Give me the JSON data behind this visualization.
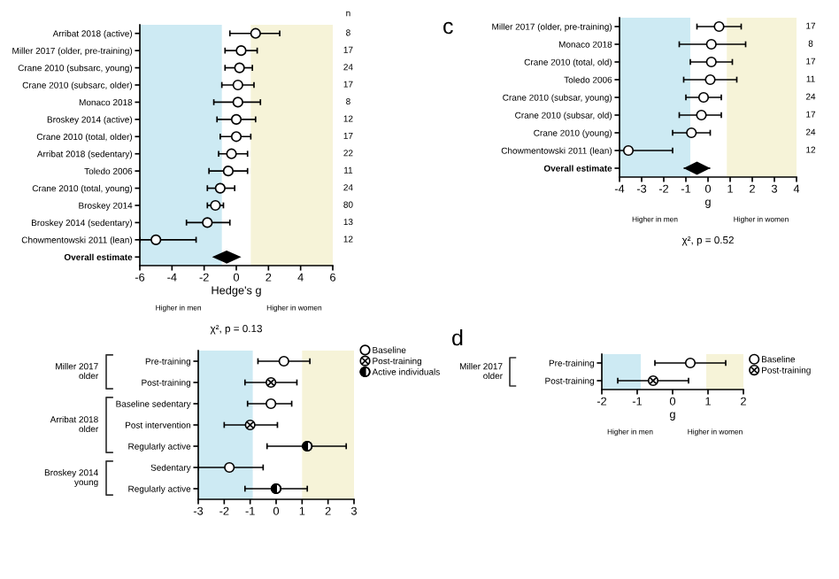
{
  "chart_data": [
    {
      "type": "scatter",
      "orientation": "horizontal",
      "xlabel": "Hedge's g",
      "y2label": "n",
      "categories": [
        "Arribat 2018 (active)",
        "Miller 2017 (older, pre-training)",
        "Crane 2010 (subsarc, young)",
        "Crane 2010 (subsarc, older)",
        "Monaco 2018",
        "Broskey 2014 (active)",
        "Crane 2010 (total, older)",
        "Arribat 2018 (sedentary)",
        "Toledo 2006",
        "Crane 2010 (total, young)",
        "Broskey 2014",
        "Broskey 2014 (sedentary)",
        "Chowmentowski 2011 (lean)",
        "Overall estimate"
      ],
      "y2_categories": [
        "8",
        "17",
        "24",
        "17",
        "8",
        "12",
        "17",
        "22",
        "11",
        "24",
        "80",
        "13",
        "12",
        null
      ],
      "series": [
        {
          "color": "#000000",
          "marker": "circle",
          "values": [
            1.2,
            0.3,
            0.2,
            0.1,
            0.1,
            0.0,
            0.0,
            -0.3,
            -0.5,
            -1.0,
            -1.3,
            -1.8,
            -5.0,
            null
          ],
          "errors": [
            [
              -0.4,
              2.7
            ],
            [
              -0.7,
              1.3
            ],
            [
              -0.7,
              1.0
            ],
            [
              -0.9,
              1.1
            ],
            [
              -1.4,
              1.5
            ],
            [
              -1.2,
              1.2
            ],
            [
              -1.0,
              0.9
            ],
            [
              -1.1,
              0.7
            ],
            [
              -1.7,
              0.7
            ],
            [
              -1.8,
              -0.1
            ],
            [
              -1.8,
              -0.8
            ],
            [
              -3.1,
              -0.4
            ],
            [
              -6.0,
              -2.5
            ],
            null
          ]
        },
        {
          "color": "#000000",
          "marker": "diamond",
          "values": [
            null,
            null,
            null,
            null,
            null,
            null,
            null,
            null,
            null,
            null,
            null,
            null,
            null,
            -0.6
          ],
          "errors": [
            null,
            null,
            null,
            null,
            null,
            null,
            null,
            null,
            null,
            null,
            null,
            null,
            null,
            [
              -1.2,
              0.1
            ]
          ]
        }
      ],
      "xlim": [
        -6,
        6
      ],
      "xticks": [
        -6,
        -4,
        -2,
        0,
        2,
        4,
        6
      ],
      "bands": [
        {
          "axis": "x",
          "from": -6,
          "to": -0.9,
          "color": "#cdeaf3"
        },
        {
          "axis": "x",
          "from": 0.9,
          "to": 6,
          "color": "#f6f3d8"
        }
      ],
      "annotations": [
        "Higher in men",
        "Higher in women",
        "χ², p = 0.13"
      ]
    },
    {
      "type": "scatter",
      "orientation": "horizontal",
      "title": "c",
      "xlabel": "g",
      "categories": [
        "Miller 2017 (older, pre-training)",
        "Monaco 2018",
        "Crane 2010 (total, old)",
        "Toledo 2006",
        "Crane 2010 (subsar, young)",
        "Crane 2010 (subsar, old)",
        "Crane 2010 (young)",
        "Chowmentowski 2011 (lean)",
        "Overall estimate"
      ],
      "y2_categories": [
        "17",
        "8",
        "17",
        "11",
        "24",
        "17",
        "24",
        "12",
        null
      ],
      "series": [
        {
          "color": "#000000",
          "marker": "circle",
          "values": [
            0.5,
            0.15,
            0.15,
            0.1,
            -0.2,
            -0.3,
            -0.75,
            -3.6,
            null
          ],
          "errors": [
            [
              -0.5,
              1.5
            ],
            [
              -1.3,
              1.7
            ],
            [
              -0.8,
              1.1
            ],
            [
              -1.1,
              1.3
            ],
            [
              -1.0,
              0.6
            ],
            [
              -1.3,
              0.6
            ],
            [
              -1.6,
              0.1
            ],
            [
              -4.0,
              -1.6
            ],
            null
          ]
        },
        {
          "color": "#000000",
          "marker": "diamond",
          "values": [
            null,
            null,
            null,
            null,
            null,
            null,
            null,
            null,
            -0.5
          ],
          "errors": [
            null,
            null,
            null,
            null,
            null,
            null,
            null,
            null,
            [
              -1.1,
              0.1
            ]
          ]
        }
      ],
      "xlim": [
        -4,
        4
      ],
      "xticks": [
        -4,
        -3,
        -2,
        -1,
        0,
        1,
        2,
        3,
        4
      ],
      "bands": [
        {
          "axis": "x",
          "from": -4,
          "to": -0.8,
          "color": "#cdeaf3"
        },
        {
          "axis": "x",
          "from": 0.85,
          "to": 4,
          "color": "#f6f3d8"
        }
      ],
      "annotations": [
        "Higher in men",
        "Higher in women",
        "χ², p = 0.52"
      ]
    },
    {
      "type": "scatter",
      "orientation": "horizontal",
      "legend": "top right",
      "categories": [
        "Pre-training",
        "Post-training",
        "Baseline sedentary",
        "Post intervention",
        "Regularly active",
        "Sedentary",
        "Regularly active"
      ],
      "series": [
        {
          "name": "Baseline",
          "color": "#000000",
          "marker": "circle",
          "values": [
            0.3,
            null,
            -0.2,
            null,
            null,
            -1.8,
            null
          ],
          "errors": [
            [
              -0.7,
              1.3
            ],
            null,
            [
              -1.1,
              0.6
            ],
            null,
            null,
            [
              -3.0,
              -0.5
            ],
            null
          ]
        },
        {
          "name": "Post-training",
          "color": "#000000",
          "marker": "cross",
          "values": [
            null,
            -0.2,
            null,
            -1.0,
            null,
            null,
            null
          ],
          "errors": [
            null,
            [
              -1.2,
              0.8
            ],
            null,
            [
              -2.0,
              0.05
            ],
            null,
            null,
            null
          ]
        },
        {
          "name": "Active individuals",
          "color": "#000000",
          "marker": "circle",
          "values": [
            null,
            null,
            null,
            null,
            1.2,
            null,
            0.0
          ],
          "errors": [
            null,
            null,
            null,
            null,
            [
              -0.35,
              2.7
            ],
            null,
            [
              -1.2,
              1.2
            ]
          ]
        }
      ],
      "xlim": [
        -3,
        3
      ],
      "xticks": [
        -3,
        -2,
        -1,
        0,
        1,
        2,
        3
      ],
      "bands": [
        {
          "axis": "x",
          "from": -3,
          "to": -0.9,
          "color": "#cdeaf3"
        },
        {
          "axis": "x",
          "from": 1.0,
          "to": 3,
          "color": "#f6f3d8"
        }
      ],
      "annotations": [
        "Miller 2017\nolder",
        "Arribat 2018\nolder",
        "Broskey 2014\nyoung"
      ]
    },
    {
      "type": "scatter",
      "orientation": "horizontal",
      "title": "d",
      "xlabel": "g",
      "legend": "top right",
      "categories": [
        "Pre-training",
        "Post-training"
      ],
      "series": [
        {
          "name": "Baseline",
          "color": "#000000",
          "marker": "circle",
          "values": [
            0.5,
            null
          ],
          "errors": [
            [
              -0.5,
              1.5
            ],
            null
          ]
        },
        {
          "name": "Post-training",
          "color": "#000000",
          "marker": "cross",
          "values": [
            null,
            -0.55
          ],
          "errors": [
            null,
            [
              -1.55,
              0.45
            ]
          ]
        }
      ],
      "xlim": [
        -2,
        2
      ],
      "xticks": [
        -2,
        -1,
        0,
        1,
        2
      ],
      "bands": [
        {
          "axis": "x",
          "from": -2,
          "to": -0.9,
          "color": "#cdeaf3"
        },
        {
          "axis": "x",
          "from": 0.95,
          "to": 2,
          "color": "#f6f3d8"
        }
      ],
      "annotations": [
        "Higher in men",
        "Higher in women",
        "Miller 2017\nolder"
      ]
    }
  ]
}
